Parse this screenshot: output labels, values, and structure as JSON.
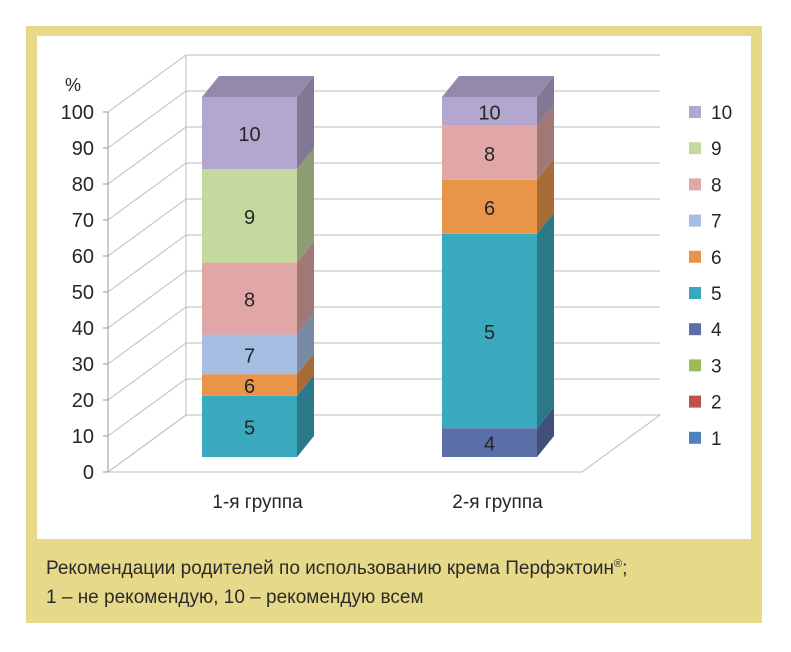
{
  "caption": {
    "line1_text": "Рекомендации родителей по использованию крема Перфэктоин",
    "line1_mark": "®",
    "line1_end": ";",
    "line2": "1 – не рекомендую, 10 – рекомендую всем"
  },
  "chart_data": {
    "type": "bar",
    "stacked": true,
    "three_d": true,
    "title": "",
    "ylabel": "%",
    "xlabel": "",
    "ylim": [
      0,
      100
    ],
    "yticks": [
      0,
      10,
      20,
      30,
      40,
      50,
      60,
      70,
      80,
      90,
      100
    ],
    "grid": true,
    "legend_position": "right",
    "categories": [
      "1-я группа",
      "2-я группа"
    ],
    "series": [
      {
        "name": "1",
        "color": "#4f81bd",
        "values": [
          0,
          0
        ]
      },
      {
        "name": "2",
        "color": "#c0504d",
        "values": [
          0,
          0
        ]
      },
      {
        "name": "3",
        "color": "#9bbb59",
        "values": [
          0,
          0
        ]
      },
      {
        "name": "4",
        "color": "#5a6fa8",
        "values": [
          0,
          8
        ]
      },
      {
        "name": "5",
        "color": "#3aa8bd",
        "values": [
          17,
          54
        ]
      },
      {
        "name": "6",
        "color": "#e8954a",
        "values": [
          6,
          15
        ]
      },
      {
        "name": "7",
        "color": "#a6bee2",
        "values": [
          11,
          0
        ]
      },
      {
        "name": "8",
        "color": "#e0a7a6",
        "values": [
          20,
          15
        ]
      },
      {
        "name": "9",
        "color": "#c4d9a0",
        "values": [
          26,
          0
        ]
      },
      {
        "name": "10",
        "color": "#b4a7cf",
        "values": [
          20,
          8
        ]
      }
    ]
  }
}
